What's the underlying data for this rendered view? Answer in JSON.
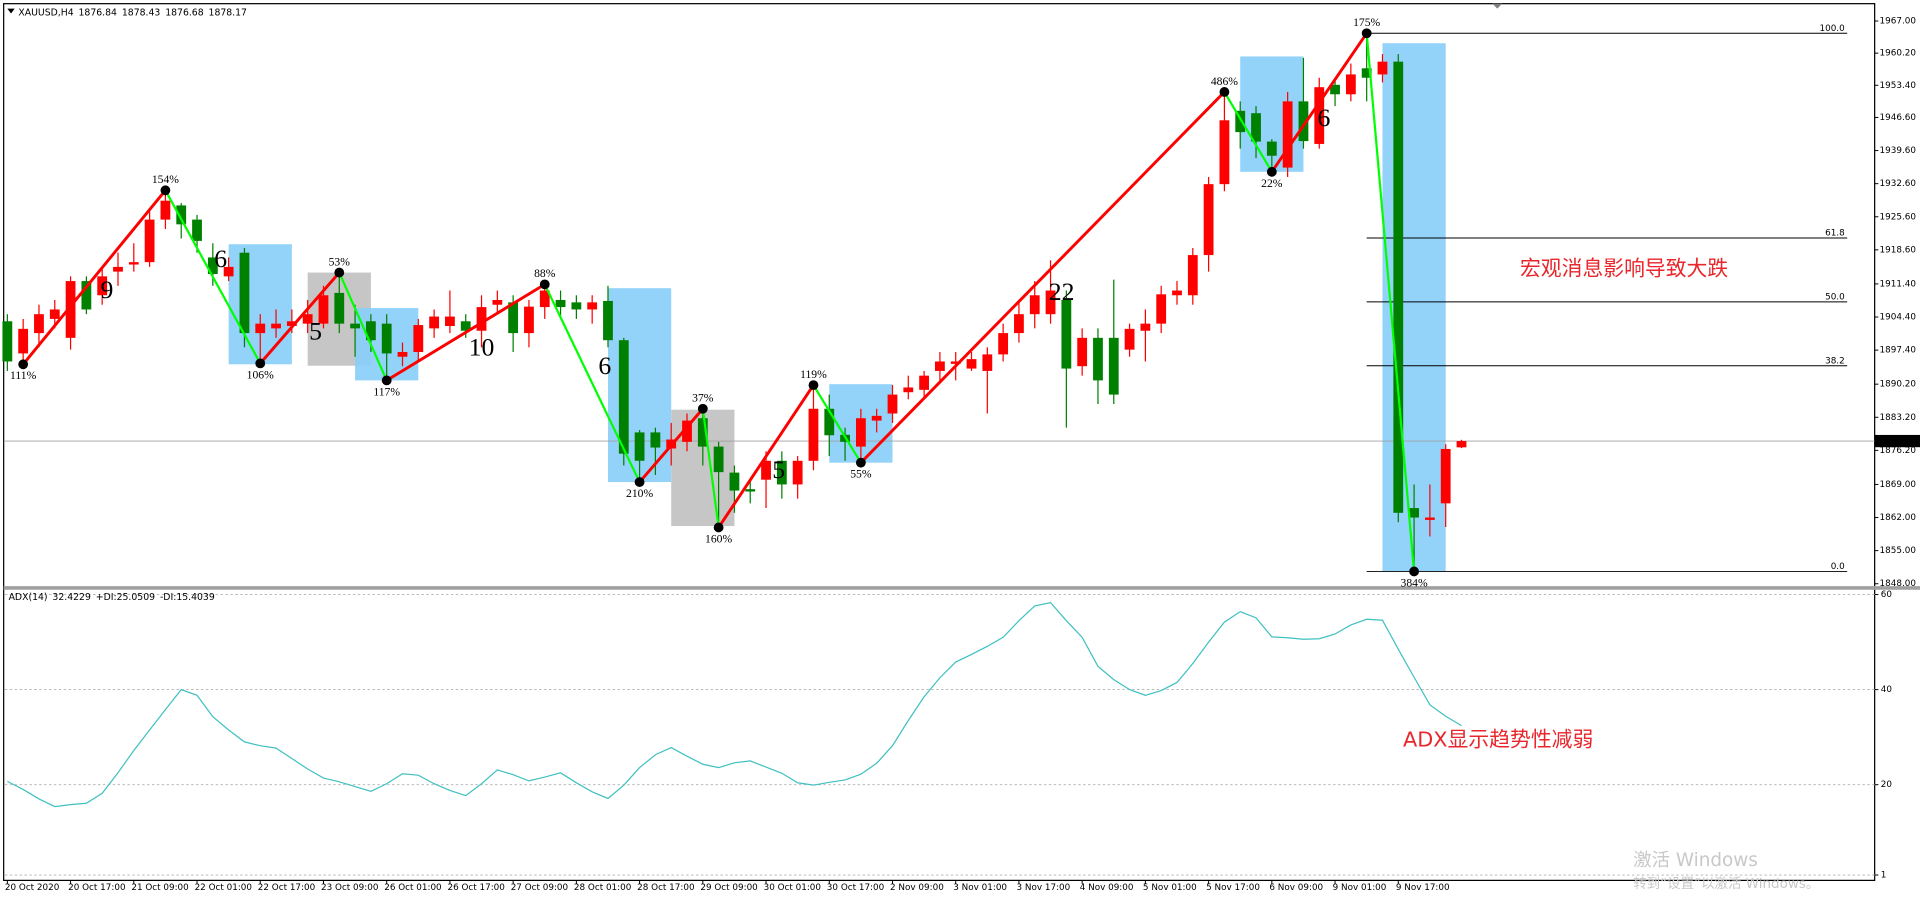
{
  "chart_data": {
    "type": "candlestick",
    "symbol": "XAUUSD,H4",
    "categories": [
      "20 Oct 2020",
      null,
      null,
      null,
      "20 Oct 17:00",
      null,
      null,
      null,
      "21 Oct 09:00",
      null,
      null,
      null,
      "22 Oct 01:00",
      null,
      null,
      null,
      "22 Oct 17:00",
      null,
      null,
      null,
      "23 Oct 09:00",
      null,
      null,
      null,
      "26 Oct 01:00",
      null,
      null,
      null,
      "26 Oct 17:00",
      null,
      null,
      null,
      "27 Oct 09:00",
      null,
      null,
      null,
      "28 Oct 01:00",
      null,
      null,
      null,
      "28 Oct 17:00",
      null,
      null,
      null,
      "29 Oct 09:00",
      null,
      null,
      null,
      "30 Oct 01:00",
      null,
      null,
      null,
      "30 Oct 17:00",
      null,
      null,
      null,
      "2 Nov 09:00",
      null,
      null,
      null,
      "3 Nov 01:00",
      null,
      null,
      null,
      "3 Nov 17:00",
      null,
      null,
      null,
      "4 Nov 09:00",
      null,
      null,
      null,
      "5 Nov 01:00",
      null,
      null,
      null,
      "5 Nov 17:00",
      null,
      null,
      null,
      "6 Nov 09:00",
      null,
      null,
      null,
      "9 Nov 01:00",
      null,
      null,
      null,
      "9 Nov 17:00",
      null,
      null,
      null,
      null
    ],
    "open": [
      1903.5,
      1896.7,
      1901,
      1904,
      1900,
      1912,
      1909,
      1914,
      1915.5,
      1916,
      1925,
      1928,
      1925,
      1917,
      1913,
      1918,
      1901,
      1902,
      1902.5,
      1903,
      1903,
      1909.5,
      1903,
      1903.5,
      1903,
      1896,
      1897,
      1902,
      1902.5,
      1903.5,
      1901.5,
      1907,
      1907.5,
      1901,
      1906.5,
      1908,
      1907.5,
      1906,
      1907.8,
      1899.5,
      1880,
      1880,
      1876.6,
      1878,
      1883,
      1877,
      1871.5,
      1868,
      1870,
      1874,
      1869,
      1874,
      1885,
      1879.5,
      1877,
      1882.5,
      1884,
      1888.5,
      1889,
      1893,
      1894.5,
      1893.5,
      1893,
      1896.5,
      1901,
      1905,
      1905,
      1908,
      1894,
      1900,
      1900,
      1897.5,
      1901.5,
      1903,
      1909,
      1909,
      1917.5,
      1932.5,
      1948,
      1947.5,
      1941.5,
      1936,
      1950,
      1941,
      1953.5,
      1951.5,
      1957,
      1955.7,
      1958.4,
      1864,
      1861.5,
      1865,
      1876.84
    ],
    "high": [
      1905,
      1904,
      1907,
      1908,
      1913,
      1913,
      1915,
      1918,
      1920,
      1927,
      1931.2,
      1928.5,
      1926,
      1920,
      1917,
      1919,
      1905,
      1906,
      1906,
      1908,
      1911,
      1913.8,
      1907,
      1905,
      1905,
      1899,
      1904,
      1906,
      1910,
      1905,
      1909,
      1910,
      1909,
      1908,
      1911.3,
      1910,
      1909,
      1909,
      1911,
      1900,
      1880.5,
      1881,
      1882,
      1884,
      1885,
      1878,
      1873,
      1870,
      1876,
      1876,
      1875,
      1890,
      1888,
      1881,
      1885,
      1885,
      1890,
      1892,
      1893,
      1897,
      1897,
      1897,
      1898,
      1903,
      1908,
      1912,
      1916.4,
      1910,
      1902,
      1902,
      1912.3,
      1903,
      1906,
      1911,
      1912,
      1919,
      1934,
      1952,
      1950,
      1949,
      1942,
      1952,
      1959.2,
      1955,
      1955,
      1958,
      1964.4,
      1960,
      1960,
      1869,
      1869,
      1877.5,
      1878.43
    ],
    "low": [
      1893,
      1894.4,
      1898,
      1902,
      1897.5,
      1905,
      1907,
      1911,
      1914,
      1915,
      1923,
      1921,
      1918,
      1911,
      1912,
      1898,
      1894.6,
      1900,
      1901,
      1901,
      1902,
      1901,
      1896,
      1897,
      1891,
      1894,
      1895,
      1900,
      1901,
      1900,
      1898,
      1905,
      1897,
      1898,
      1904,
      1904,
      1904,
      1903,
      1898,
      1873,
      1869.5,
      1871,
      1873,
      1876,
      1873,
      1859.9,
      1863,
      1865,
      1864,
      1866,
      1866,
      1872,
      1875,
      1874,
      1873.6,
      1880,
      1882,
      1887,
      1887,
      1891,
      1891,
      1893,
      1884,
      1895,
      1899,
      1902,
      1903,
      1881,
      1892,
      1886,
      1886,
      1896,
      1895,
      1901,
      1907,
      1907,
      1914,
      1931,
      1940,
      1938,
      1935.1,
      1934,
      1940,
      1940,
      1949,
      1950,
      1950,
      1954,
      1861,
      1850.6,
      1858,
      1860,
      1876.68
    ],
    "close": [
      1895,
      1901.9,
      1905,
      1906,
      1912,
      1906,
      1913,
      1915,
      1916,
      1925,
      1929,
      1924,
      1920.5,
      1913.5,
      1915,
      1901,
      1903,
      1903,
      1903.5,
      1905,
      1909,
      1903,
      1902,
      1899.5,
      1896.7,
      1897,
      1902.7,
      1904.5,
      1904.5,
      1901.5,
      1906.5,
      1908,
      1901,
      1906.6,
      1910,
      1906.5,
      1906,
      1907.5,
      1899.5,
      1875.5,
      1874,
      1876.8,
      1878.5,
      1882.5,
      1877,
      1871.6,
      1867.7,
      1867.5,
      1874,
      1869,
      1874,
      1885,
      1879.4,
      1878,
      1883,
      1883.5,
      1888,
      1889.5,
      1892,
      1895,
      1895,
      1895.5,
      1896.5,
      1901,
      1905,
      1909,
      1910,
      1893.5,
      1900,
      1891,
      1888,
      1901.9,
      1903,
      1909.2,
      1910,
      1917.5,
      1932.5,
      1946,
      1943.5,
      1941.5,
      1938.5,
      1950,
      1941.6,
      1953,
      1951.5,
      1955.7,
      1955,
      1958.4,
      1863,
      1862,
      1862,
      1876.5,
      1878.17
    ],
    "up_color": "#ff0000",
    "down_color": "#008000",
    "ylim": [
      1847.5,
      1970.4
    ],
    "yticks": [
      {
        "value": 1967,
        "label": "1967.00"
      },
      {
        "value": 1960.2,
        "label": "1960.20"
      },
      {
        "value": 1953.4,
        "label": "1953.40"
      },
      {
        "value": 1946.6,
        "label": "1946.60"
      },
      {
        "value": 1939.6,
        "label": "1939.60"
      },
      {
        "value": 1932.6,
        "label": "1932.60"
      },
      {
        "value": 1925.6,
        "label": "1925.60"
      },
      {
        "value": 1918.6,
        "label": "1918.60"
      },
      {
        "value": 1911.4,
        "label": "1911.40"
      },
      {
        "value": 1904.4,
        "label": "1904.40"
      },
      {
        "value": 1897.4,
        "label": "1897.40"
      },
      {
        "value": 1890.2,
        "label": "1890.20"
      },
      {
        "value": 1883.2,
        "label": "1883.20"
      },
      {
        "value": 1876.2,
        "label": "1876.20"
      },
      {
        "value": 1869,
        "label": "1869.00"
      },
      {
        "value": 1862,
        "label": "1862.00"
      },
      {
        "value": 1855,
        "label": "1855.00"
      },
      {
        "value": 1848,
        "label": "1848.00"
      }
    ],
    "zigzag": {
      "index": [
        1,
        10,
        16,
        21,
        24,
        34,
        40,
        44,
        45,
        51,
        54,
        77,
        80,
        86,
        89
      ],
      "price": [
        1894.4,
        1931.2,
        1894.6,
        1913.8,
        1891,
        1911.3,
        1869.5,
        1885,
        1859.9,
        1890,
        1873.6,
        1952,
        1935.1,
        1964.4,
        1850.6
      ],
      "labels": [
        "111%",
        "154%",
        "106%",
        "53%",
        "117%",
        "88%",
        "210%",
        "37%",
        "160%",
        "119%",
        "55%",
        "486%",
        "22%",
        "175%",
        "384%"
      ],
      "up_color": "#ff0000",
      "down_color": "#00ff00"
    },
    "wave_counts": {
      "values": [
        9,
        6,
        5,
        10,
        6,
        5,
        22,
        6
      ],
      "index": [
        6.3,
        13.5,
        19.5,
        30,
        37.8,
        48.8,
        66.7,
        83.3
      ],
      "price": [
        1909.7,
        1916.2,
        1900.9,
        1897.5,
        1893.6,
        1871.6,
        1909.2,
        1946
      ]
    },
    "boxes": [
      {
        "from": 14,
        "to": 18,
        "top": 1919.8,
        "bottom": 1894.4,
        "color": "#87cefa"
      },
      {
        "from": 19,
        "to": 23,
        "top": 1913.8,
        "bottom": 1894.1,
        "color": "#c0c0c0"
      },
      {
        "from": 22,
        "to": 26,
        "top": 1906.3,
        "bottom": 1891,
        "color": "#87cefa"
      },
      {
        "from": 38,
        "to": 42,
        "top": 1910.5,
        "bottom": 1869.5,
        "color": "#87cefa"
      },
      {
        "from": 42,
        "to": 46,
        "top": 1884.8,
        "bottom": 1860.2,
        "color": "#c0c0c0"
      },
      {
        "from": 52,
        "to": 56,
        "top": 1890.2,
        "bottom": 1873.6,
        "color": "#87cefa"
      },
      {
        "from": 78,
        "to": 82,
        "top": 1959.5,
        "bottom": 1935.1,
        "color": "#87cefa"
      },
      {
        "from": 87,
        "to": 91,
        "top": 1962.3,
        "bottom": 1850.6,
        "color": "#87cefa"
      }
    ],
    "fibonacci": {
      "from_index": 86,
      "to_index": 116.4,
      "levels": [
        {
          "value": 100,
          "label": "100.0",
          "price": 1964.4
        },
        {
          "value": 61.8,
          "label": "61.8",
          "price": 1921.1
        },
        {
          "value": 50,
          "label": "50.0",
          "price": 1907.6
        },
        {
          "value": 38.2,
          "label": "38.2",
          "price": 1894.1
        },
        {
          "value": 0,
          "label": "0.0",
          "price": 1850.6
        }
      ]
    },
    "annotations": [
      {
        "text": "宏观消息影响导致大跌",
        "index": 95.7,
        "price": 1914.4
      }
    ],
    "indicator": {
      "type": "line",
      "label": "ADX(14)",
      "color": "#40c0c0",
      "values": [
        20.7,
        19,
        17,
        15.4,
        15.8,
        16.1,
        18.2,
        22.5,
        27.2,
        31.5,
        35.8,
        40,
        38.8,
        34.3,
        31.5,
        29,
        28.2,
        27.7,
        25.5,
        23.3,
        21.4,
        20.6,
        19.6,
        18.6,
        20.2,
        22.3,
        22,
        20.2,
        18.8,
        17.7,
        20.2,
        23.1,
        22.1,
        20.8,
        21.6,
        22.5,
        20.4,
        18.5,
        17.1,
        19.9,
        23.6,
        26.3,
        27.8,
        26,
        24.3,
        23.6,
        24.6,
        25,
        23.7,
        22.4,
        20.4,
        19.9,
        20.5,
        21,
        22.2,
        24.5,
        28.2,
        33.5,
        38.5,
        42.5,
        45.8,
        47.4,
        49.1,
        51,
        54.5,
        57.6,
        58.3,
        54.5,
        51,
        44.9,
        42.1,
        40,
        38.8,
        39.8,
        41.5,
        45.5,
        50,
        54.2,
        56.4,
        55.1,
        51.1,
        50.9,
        50.6,
        50.7,
        51.7,
        53.6,
        54.8,
        54.6,
        48.5,
        42.6,
        36.8,
        34.4,
        32.4229
      ],
      "di_plus_label": "+DI:",
      "di_plus": 25.0509,
      "di_minus_label": "-DI:",
      "di_minus": 15.4039,
      "ylim": [
        0,
        61
      ],
      "yticks": [
        60,
        40,
        20,
        1
      ],
      "grid": true,
      "annotation": {
        "text": "ADX显示趋势性减弱",
        "index": 88.3,
        "value": 29.3
      }
    },
    "watermark": {
      "title": "激活 Windows",
      "subtitle": "转到“设置”以激活 Windows。"
    }
  }
}
